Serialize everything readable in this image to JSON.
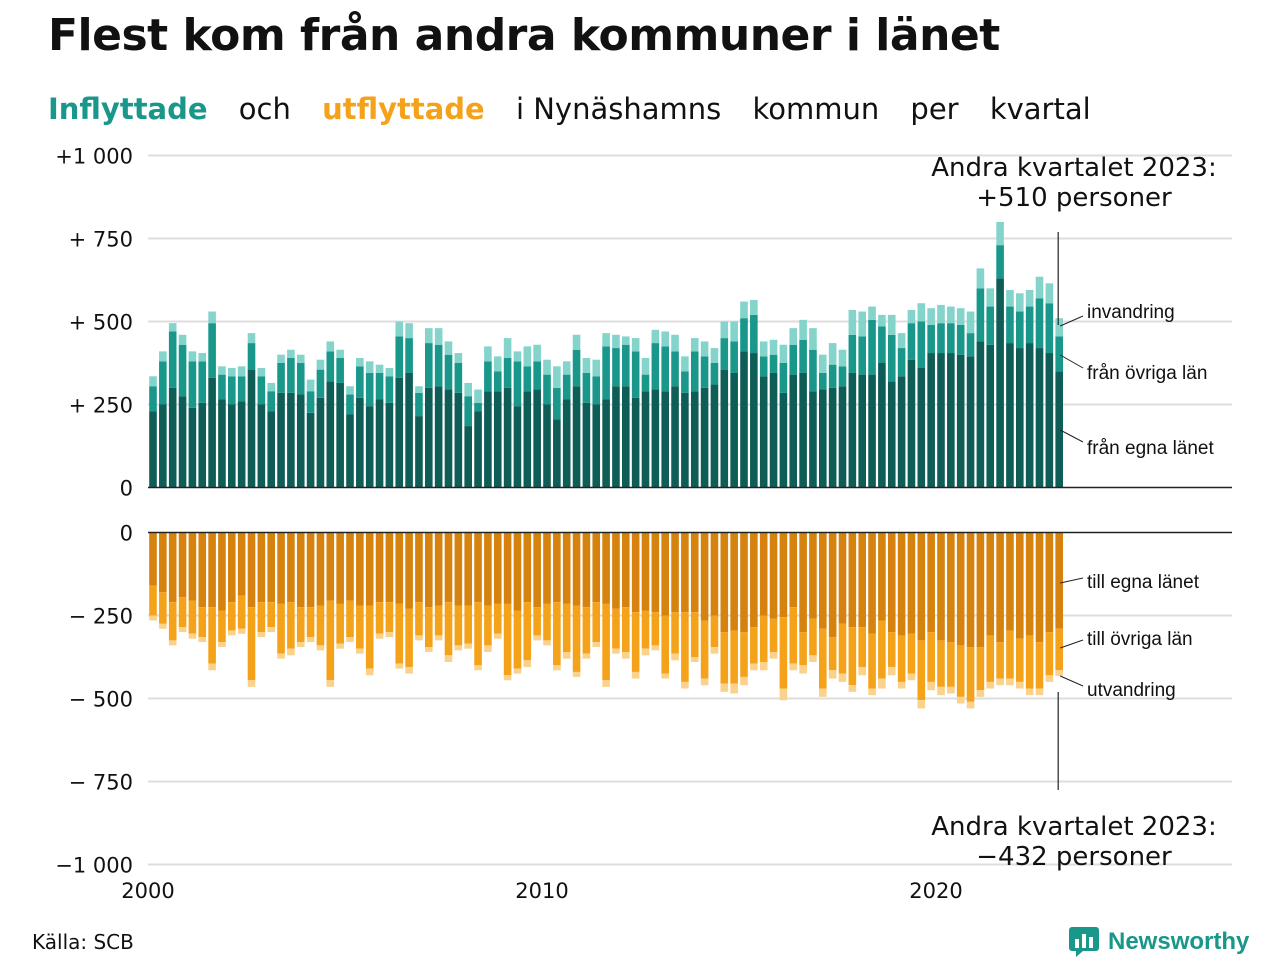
{
  "title": "Flest kom från andra kommuner i länet",
  "subtitle": {
    "inflow_word": "Inflyttade",
    "and_word": "och",
    "outflow_word": "utflyttade",
    "rest": [
      "i Nynäshamns",
      "kommun",
      "per",
      "kvartal"
    ]
  },
  "colors": {
    "in_own": "#0f5d57",
    "in_other": "#18978a",
    "in_immig": "#84d4cc",
    "out_own": "#d6820e",
    "out_other": "#f5a21b",
    "out_emig": "#fad28c",
    "grid": "#dddddd",
    "text": "#111111"
  },
  "annotations": {
    "top_line1": "Andra kvartalet 2023:",
    "top_line2": "+510 personer",
    "bottom_line1": "Andra kvartalet 2023:",
    "bottom_line2": "−432 personer"
  },
  "series_labels": {
    "in_immig": "invandring",
    "in_other": "från övriga län",
    "in_own": "från egna länet",
    "out_own": "till egna länet",
    "out_other": "till övriga län",
    "out_emig": "utvandring"
  },
  "source": "Källa: SCB",
  "brand": "Newsworthy",
  "chart_data": {
    "type": "bar",
    "stacked": true,
    "x_start": "2000 Q1",
    "x_end": "2023 Q2",
    "x_ticks": [
      "2000",
      "2010",
      "2020"
    ],
    "ylim": [
      -1000,
      1000
    ],
    "y_ticks_top": [
      "+1 000",
      "+  750",
      "+  500",
      "+  250",
      "0"
    ],
    "y_ticks_bottom": [
      "0",
      "−  250",
      "−  500",
      "−  750",
      "−1 000"
    ],
    "grid": true,
    "series": [
      {
        "name": "från egna länet",
        "key": "in_own",
        "values": [
          230,
          250,
          300,
          275,
          240,
          255,
          330,
          265,
          250,
          260,
          355,
          250,
          230,
          285,
          285,
          280,
          225,
          270,
          320,
          315,
          220,
          270,
          245,
          265,
          255,
          330,
          345,
          215,
          300,
          305,
          295,
          285,
          185,
          230,
          290,
          290,
          300,
          245,
          290,
          295,
          250,
          205,
          265,
          305,
          255,
          250,
          265,
          305,
          305,
          270,
          290,
          295,
          290,
          305,
          285,
          290,
          300,
          310,
          355,
          345,
          410,
          405,
          335,
          345,
          285,
          340,
          345,
          290,
          295,
          300,
          305,
          345,
          340,
          340,
          375,
          320,
          335,
          385,
          360,
          405,
          405,
          405,
          400,
          395,
          440,
          430,
          630,
          435,
          420,
          435,
          420,
          405,
          350
        ]
      },
      {
        "name": "från övriga län",
        "key": "in_other",
        "values": [
          75,
          130,
          170,
          155,
          140,
          125,
          165,
          75,
          85,
          75,
          80,
          85,
          60,
          90,
          105,
          95,
          65,
          85,
          90,
          75,
          60,
          95,
          100,
          80,
          80,
          125,
          105,
          70,
          135,
          125,
          105,
          90,
          90,
          25,
          90,
          60,
          90,
          135,
          75,
          85,
          90,
          95,
          75,
          110,
          90,
          85,
          160,
          115,
          125,
          140,
          50,
          140,
          135,
          105,
          65,
          120,
          95,
          65,
          95,
          95,
          100,
          115,
          60,
          55,
          90,
          90,
          100,
          125,
          50,
          70,
          60,
          115,
          115,
          165,
          110,
          140,
          85,
          110,
          140,
          85,
          90,
          90,
          90,
          70,
          160,
          115,
          100,
          110,
          110,
          110,
          150,
          150,
          105
        ]
      },
      {
        "name": "invandring",
        "key": "in_immig",
        "values": [
          30,
          30,
          25,
          30,
          30,
          25,
          35,
          25,
          25,
          30,
          30,
          25,
          25,
          25,
          25,
          25,
          35,
          30,
          30,
          25,
          25,
          25,
          35,
          25,
          25,
          45,
          45,
          20,
          45,
          50,
          40,
          30,
          40,
          40,
          45,
          45,
          60,
          30,
          60,
          50,
          45,
          65,
          40,
          45,
          45,
          50,
          40,
          40,
          25,
          40,
          50,
          40,
          45,
          50,
          45,
          40,
          45,
          45,
          50,
          60,
          50,
          45,
          45,
          45,
          55,
          50,
          60,
          65,
          55,
          65,
          50,
          75,
          75,
          40,
          35,
          60,
          45,
          40,
          55,
          50,
          55,
          50,
          50,
          65,
          60,
          55,
          70,
          50,
          55,
          50,
          65,
          60,
          55
        ]
      },
      {
        "name": "till egna länet",
        "key": "out_own",
        "values": [
          -160,
          -180,
          -210,
          -195,
          -205,
          -225,
          -225,
          -235,
          -210,
          -190,
          -225,
          -210,
          -210,
          -215,
          -210,
          -225,
          -225,
          -220,
          -205,
          -215,
          -205,
          -220,
          -220,
          -210,
          -210,
          -215,
          -230,
          -210,
          -225,
          -220,
          -210,
          -220,
          -220,
          -210,
          -220,
          -215,
          -215,
          -235,
          -210,
          -225,
          -215,
          -210,
          -215,
          -220,
          -225,
          -210,
          -215,
          -230,
          -225,
          -240,
          -235,
          -240,
          -250,
          -240,
          -240,
          -240,
          -265,
          -250,
          -300,
          -295,
          -300,
          -285,
          -250,
          -260,
          -255,
          -225,
          -300,
          -260,
          -290,
          -315,
          -275,
          -285,
          -285,
          -305,
          -265,
          -300,
          -310,
          -305,
          -325,
          -300,
          -325,
          -330,
          -340,
          -345,
          -345,
          -310,
          -330,
          -295,
          -320,
          -310,
          -330,
          -300,
          -290
        ]
      },
      {
        "name": "till övriga län",
        "key": "out_other",
        "values": [
          -90,
          -95,
          -115,
          -90,
          -100,
          -90,
          -170,
          -95,
          -85,
          -100,
          -220,
          -90,
          -75,
          -150,
          -140,
          -105,
          -90,
          -120,
          -240,
          -120,
          -110,
          -130,
          -190,
          -95,
          -90,
          -180,
          -175,
          -100,
          -120,
          -90,
          -160,
          -120,
          -115,
          -190,
          -120,
          -90,
          -215,
          -175,
          -175,
          -85,
          -110,
          -190,
          -145,
          -200,
          -140,
          -120,
          -230,
          -120,
          -135,
          -180,
          -115,
          -100,
          -175,
          -125,
          -210,
          -135,
          -175,
          -95,
          -155,
          -160,
          -135,
          -110,
          -140,
          -100,
          -215,
          -170,
          -100,
          -110,
          -180,
          -100,
          -150,
          -175,
          -120,
          -165,
          -175,
          -105,
          -140,
          -120,
          -180,
          -150,
          -140,
          -135,
          -155,
          -165,
          -130,
          -140,
          -110,
          -145,
          -130,
          -160,
          -140,
          -130,
          -125
        ]
      },
      {
        "name": "utvandring",
        "key": "out_emig",
        "values": [
          -15,
          -15,
          -15,
          -15,
          -15,
          -15,
          -20,
          -15,
          -15,
          -15,
          -20,
          -15,
          -15,
          -15,
          -20,
          -15,
          -15,
          -15,
          -20,
          -15,
          -15,
          -15,
          -20,
          -15,
          -15,
          -15,
          -20,
          -15,
          -15,
          -15,
          -20,
          -15,
          -15,
          -15,
          -20,
          -15,
          -15,
          -15,
          -20,
          -15,
          -15,
          -15,
          -20,
          -15,
          -15,
          -15,
          -20,
          -15,
          -20,
          -20,
          -20,
          -15,
          -15,
          -20,
          -20,
          -15,
          -20,
          -20,
          -25,
          -30,
          -25,
          -20,
          -25,
          -20,
          -35,
          -20,
          -25,
          -20,
          -25,
          -25,
          -25,
          -20,
          -25,
          -20,
          -30,
          -25,
          -20,
          -20,
          -25,
          -25,
          -25,
          -20,
          -20,
          -20,
          -20,
          -20,
          -20,
          -20,
          -20,
          -20,
          -20,
          -20,
          -17
        ]
      }
    ]
  }
}
